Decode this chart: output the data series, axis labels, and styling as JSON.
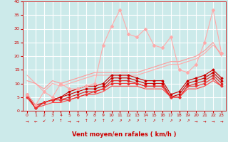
{
  "x": [
    0,
    1,
    2,
    3,
    4,
    5,
    6,
    7,
    8,
    9,
    10,
    11,
    12,
    13,
    14,
    15,
    16,
    17,
    18,
    19,
    20,
    21,
    22,
    23
  ],
  "background_color": "#cceaea",
  "grid_color": "#ffffff",
  "xlabel": "Vent moyen/en rafales ( km/h )",
  "xlabel_color": "#cc0000",
  "tick_color": "#cc0000",
  "lines": [
    {
      "y": [
        13,
        10,
        7,
        10,
        9,
        10,
        11,
        12,
        13,
        13,
        13,
        13,
        13,
        13,
        14,
        15,
        16,
        17,
        17,
        18,
        19,
        21,
        24,
        21
      ],
      "color": "#ffaaaa",
      "lw": 0.8,
      "marker": null,
      "zorder": 2
    },
    {
      "y": [
        11,
        10,
        8,
        11,
        10,
        11,
        12,
        13,
        14,
        14,
        14,
        14,
        14,
        14,
        15,
        16,
        17,
        18,
        18,
        19,
        20,
        22,
        25,
        20
      ],
      "color": "#ff9999",
      "lw": 0.8,
      "marker": null,
      "zorder": 2
    },
    {
      "y": [
        6,
        2,
        3,
        4,
        5,
        7,
        8,
        9,
        9,
        10,
        13,
        13,
        13,
        12,
        11,
        11,
        11,
        6,
        7,
        11,
        12,
        13,
        15,
        12
      ],
      "color": "#cc0000",
      "lw": 0.8,
      "marker": "D",
      "ms": 1.5,
      "zorder": 4
    },
    {
      "y": [
        6,
        1,
        3,
        4,
        5,
        6,
        7,
        8,
        8,
        9,
        12,
        12,
        12,
        11,
        10,
        10,
        10,
        5,
        6,
        10,
        11,
        12,
        14,
        11
      ],
      "color": "#cc0000",
      "lw": 0.8,
      "marker": "D",
      "ms": 1.5,
      "zorder": 4
    },
    {
      "y": [
        5,
        1,
        3,
        4,
        4,
        5,
        6,
        7,
        7,
        8,
        11,
        11,
        11,
        10,
        9,
        9,
        9,
        5,
        5,
        9,
        10,
        11,
        13,
        10
      ],
      "color": "#dd2222",
      "lw": 0.8,
      "marker": "D",
      "ms": 1.5,
      "zorder": 4
    },
    {
      "y": [
        5,
        1,
        3,
        4,
        4,
        4,
        5,
        6,
        7,
        8,
        10,
        10,
        10,
        10,
        9,
        9,
        9,
        5,
        5,
        9,
        9,
        10,
        12,
        9
      ],
      "color": "#ee3333",
      "lw": 0.8,
      "marker": "D",
      "ms": 1.5,
      "zorder": 4
    },
    {
      "y": [
        5,
        1,
        2,
        3,
        3,
        4,
        5,
        6,
        6,
        7,
        9,
        9,
        9,
        9,
        8,
        8,
        8,
        5,
        5,
        8,
        8,
        9,
        11,
        9
      ],
      "color": "#ff4444",
      "lw": 0.8,
      "marker": null,
      "zorder": 3
    },
    {
      "y": [
        6,
        2,
        7,
        5,
        10,
        8,
        8,
        9,
        10,
        24,
        31,
        37,
        28,
        27,
        30,
        24,
        23,
        27,
        15,
        14,
        17,
        25,
        37,
        21
      ],
      "color": "#ffaaaa",
      "lw": 0.8,
      "marker": "D",
      "ms": 2,
      "zorder": 5
    }
  ],
  "ylim": [
    0,
    40
  ],
  "xlim": [
    -0.5,
    23.5
  ],
  "yticks": [
    0,
    5,
    10,
    15,
    20,
    25,
    30,
    35,
    40
  ],
  "xticks": [
    0,
    1,
    2,
    3,
    4,
    5,
    6,
    7,
    8,
    9,
    10,
    11,
    12,
    13,
    14,
    15,
    16,
    17,
    18,
    19,
    20,
    21,
    22,
    23
  ],
  "wind_arrows": [
    "→",
    "←",
    "↙",
    "↗",
    "↑",
    "→",
    "→",
    "↑",
    "↗",
    "↑",
    "↗",
    "↗",
    "↗",
    "↗",
    "↑",
    "↗",
    "↑",
    "↗",
    "↗",
    "↗",
    "→",
    "→",
    "→",
    "→"
  ],
  "figsize": [
    3.2,
    2.0
  ],
  "dpi": 100
}
